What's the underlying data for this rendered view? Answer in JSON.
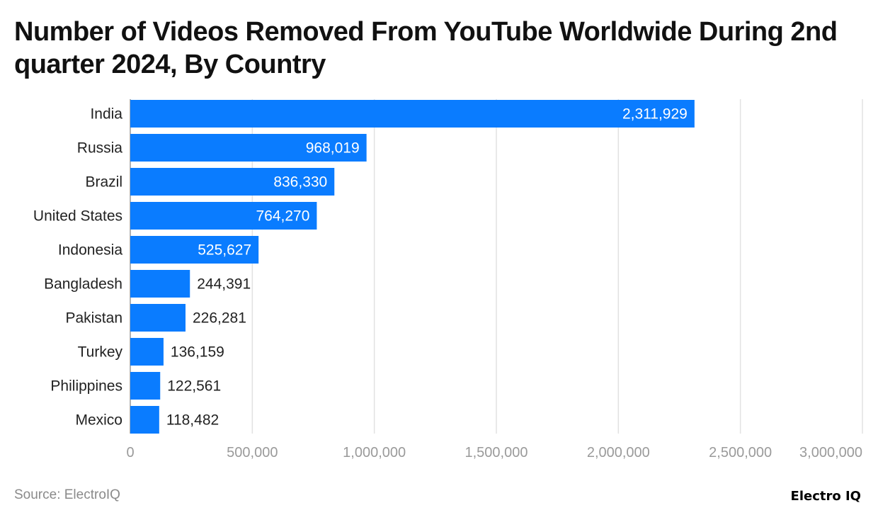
{
  "title": "Number of Videos Removed From YouTube Worldwide During 2nd quarter 2024, By Country",
  "source": "Source: ElectroIQ",
  "logo_text": "Electro IQ",
  "chart_data": {
    "type": "bar",
    "orientation": "horizontal",
    "title": "Number of Videos Removed From YouTube Worldwide During 2nd quarter 2024, By Country",
    "categories": [
      "India",
      "Russia",
      "Brazil",
      "United States",
      "Indonesia",
      "Bangladesh",
      "Pakistan",
      "Turkey",
      "Philippines",
      "Mexico"
    ],
    "values": [
      2311929,
      968019,
      836330,
      764270,
      525627,
      244391,
      226281,
      136159,
      122561,
      118482
    ],
    "data_labels": [
      "2,311,929",
      "968,019",
      "836,330",
      "764,270",
      "525,627",
      "244,391",
      "226,281",
      "136,159",
      "122,561",
      "118,482"
    ],
    "xlim": [
      0,
      3000000
    ],
    "x_ticks": [
      0,
      500000,
      1000000,
      1500000,
      2000000,
      2500000,
      3000000
    ],
    "x_tick_labels": [
      "0",
      "500,000",
      "1,000,000",
      "1,500,000",
      "2,000,000",
      "2,500,000",
      "3,000,000"
    ],
    "grid": true,
    "bar_color": "#0a7cff"
  }
}
